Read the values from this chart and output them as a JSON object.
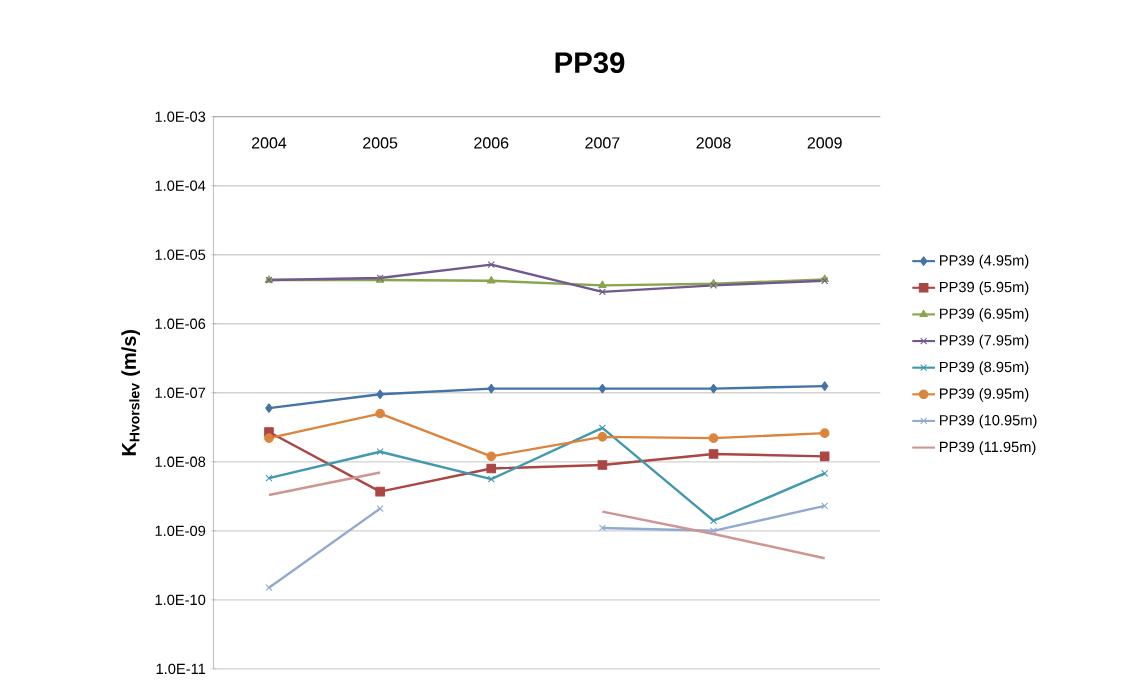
{
  "chart_data": {
    "type": "line",
    "title": "PP39",
    "ylabel": "K$_{Hvorslev}$ (m/s)",
    "categories": [
      "2004",
      "2005",
      "2006",
      "2007",
      "2008",
      "2009"
    ],
    "log": "y",
    "grid": "y",
    "legend": "right",
    "ylim": [
      1e-11,
      0.001
    ],
    "yticks": [
      {
        "value": 1e-11,
        "label": "1.0E-11"
      },
      {
        "value": 1e-10,
        "label": "1.0E-10"
      },
      {
        "value": 1e-09,
        "label": "1.0E-09"
      },
      {
        "value": 1e-08,
        "label": "1.0E-08"
      },
      {
        "value": 1e-07,
        "label": "1.0E-07"
      },
      {
        "value": 1e-06,
        "label": "1.0E-06"
      },
      {
        "value": 1e-05,
        "label": "1.0E-05"
      },
      {
        "value": 0.0001,
        "label": "1.0E-04"
      },
      {
        "value": 0.001,
        "label": "1.0E-03"
      }
    ],
    "series": [
      {
        "name": "PP39 (4.95m)",
        "color": "#4572a7",
        "marker": "diamond",
        "values": [
          6e-08,
          9.5e-08,
          1.15e-07,
          1.15e-07,
          1.15e-07,
          1.25e-07
        ]
      },
      {
        "name": "PP39 (5.95m)",
        "color": "#aa4643",
        "marker": "square",
        "values": [
          2.7e-08,
          3.7e-09,
          8e-09,
          9e-09,
          1.3e-08,
          1.2e-08
        ]
      },
      {
        "name": "PP39 (6.95m)",
        "color": "#89a54e",
        "marker": "triangle",
        "values": [
          4.3e-06,
          4.3e-06,
          4.2e-06,
          3.6e-06,
          3.8e-06,
          4.4e-06
        ]
      },
      {
        "name": "PP39 (7.95m)",
        "color": "#71588f",
        "marker": "cross",
        "values": [
          4.3e-06,
          4.6e-06,
          7.2e-06,
          2.9e-06,
          3.6e-06,
          4.2e-06
        ]
      },
      {
        "name": "PP39 (8.95m)",
        "color": "#4198af",
        "marker": "cross",
        "values": [
          5.8e-09,
          1.4e-08,
          5.6e-09,
          3.1e-08,
          1.4e-09,
          6.8e-09
        ]
      },
      {
        "name": "PP39 (9.95m)",
        "color": "#db843d",
        "marker": "circle",
        "values": [
          2.2e-08,
          5e-08,
          1.2e-08,
          2.3e-08,
          2.2e-08,
          2.6e-08
        ]
      },
      {
        "name": "PP39 (10.95m)",
        "color": "#93a9cf",
        "marker": "cross",
        "values": [
          1.5e-10,
          2.1e-09,
          null,
          1.1e-09,
          1e-09,
          2.3e-09
        ]
      },
      {
        "name": "PP39 (11.95m)",
        "color": "#d09493",
        "marker": "none",
        "values": [
          3.3e-09,
          7e-09,
          null,
          1.9e-09,
          9e-10,
          4e-10
        ]
      }
    ]
  }
}
